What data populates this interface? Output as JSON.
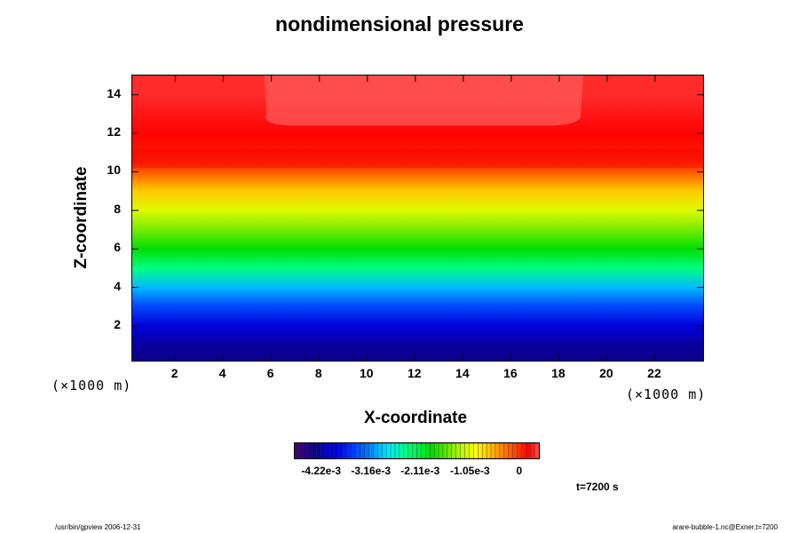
{
  "chart_data": {
    "type": "heatmap",
    "title": "nondimensional pressure",
    "xlabel": "X-coordinate",
    "ylabel": "Z-coordinate",
    "x_unit": "(×1000 m)",
    "y_unit": "(×1000 m)",
    "xlim": [
      0.2,
      24
    ],
    "ylim": [
      0.2,
      15
    ],
    "xticks": [
      2,
      4,
      6,
      8,
      10,
      12,
      14,
      16,
      18,
      20,
      22
    ],
    "yticks": [
      2,
      4,
      6,
      8,
      10,
      12,
      14
    ],
    "colorbar": {
      "min": -0.0048,
      "max": 0.0004,
      "tick_labels": [
        "-4.22e-3",
        "-3.16e-3",
        "-2.11e-3",
        "-1.05e-3",
        "0"
      ],
      "tick_values": [
        -0.00422,
        -0.00316,
        -0.00211,
        -0.00105,
        0
      ]
    },
    "profile_z": [
      0.2,
      1,
      2,
      3,
      4,
      5,
      6,
      7,
      8,
      9,
      10,
      10.5,
      11,
      12,
      13,
      14,
      15
    ],
    "profile_value": [
      -0.0044,
      -0.0043,
      -0.004,
      -0.0035,
      -0.003,
      -0.0024,
      -0.0019,
      -0.0015,
      -0.0011,
      -0.0007,
      -0.0002,
      2e-05,
      0.0001,
      0.0002,
      0.00025,
      0.0003,
      0.0003
    ],
    "annotation": "t=7200 s"
  },
  "footer": {
    "left": "/usr/bin/gpview 2006-12-31",
    "right": "arare-bubble-1.nc@Exner,t=7200"
  }
}
